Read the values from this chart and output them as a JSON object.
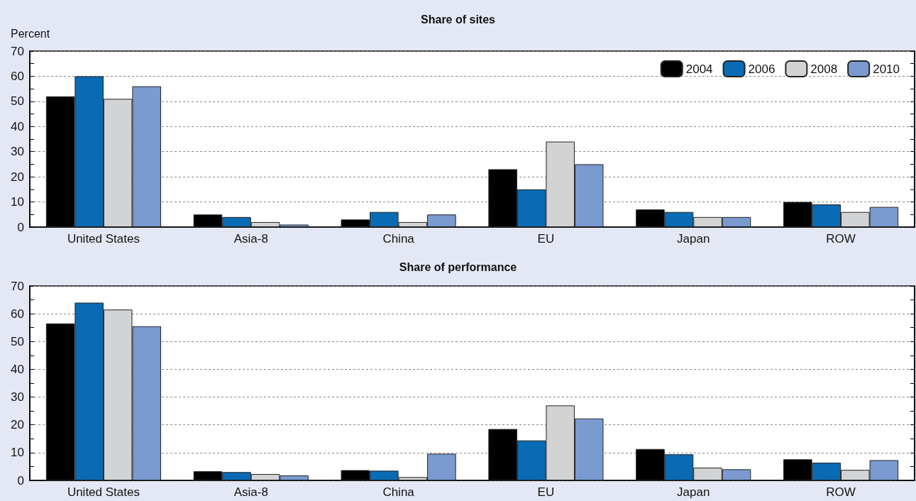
{
  "chart_data": [
    {
      "type": "bar",
      "title": "Share of sites",
      "ylabel": "Percent",
      "categories": [
        "United States",
        "Asia-8",
        "China",
        "EU",
        "Japan",
        "ROW"
      ],
      "series": [
        {
          "name": "2004",
          "color": "#000000",
          "values": [
            52,
            5,
            3,
            23,
            7,
            10
          ]
        },
        {
          "name": "2006",
          "color": "#0a6bb5",
          "values": [
            60,
            4,
            6,
            15,
            6,
            9
          ]
        },
        {
          "name": "2008",
          "color": "#d2d3d5",
          "values": [
            51,
            2,
            2,
            34,
            4,
            6
          ]
        },
        {
          "name": "2010",
          "color": "#7a9ad0",
          "values": [
            56,
            1,
            5,
            25,
            4,
            8
          ]
        }
      ],
      "ylim": [
        0,
        70
      ],
      "yticks": [
        0,
        10,
        20,
        30,
        40,
        50,
        60,
        70
      ],
      "grid": "y",
      "legend": "top right"
    },
    {
      "type": "bar",
      "title": "Share of performance",
      "categories": [
        "United States",
        "Asia-8",
        "China",
        "EU",
        "Japan",
        "ROW"
      ],
      "series": [
        {
          "color": "#000000",
          "values": [
            56.5,
            3.3,
            3.7,
            18.5,
            11.3,
            7.6
          ]
        },
        {
          "color": "#0a6bb5",
          "values": [
            64,
            3,
            3.5,
            14.4,
            9.4,
            6.4
          ]
        },
        {
          "color": "#d2d3d5",
          "values": [
            61.5,
            2.3,
            1.2,
            27,
            4.6,
            3.8
          ]
        },
        {
          "color": "#7a9ad0",
          "values": [
            55.5,
            1.8,
            9.6,
            22.3,
            4,
            7.3
          ]
        }
      ],
      "ylim": [
        0,
        70
      ],
      "yticks": [
        0,
        10,
        20,
        30,
        40,
        50,
        60,
        70
      ],
      "grid": "y",
      "legend": false
    }
  ]
}
